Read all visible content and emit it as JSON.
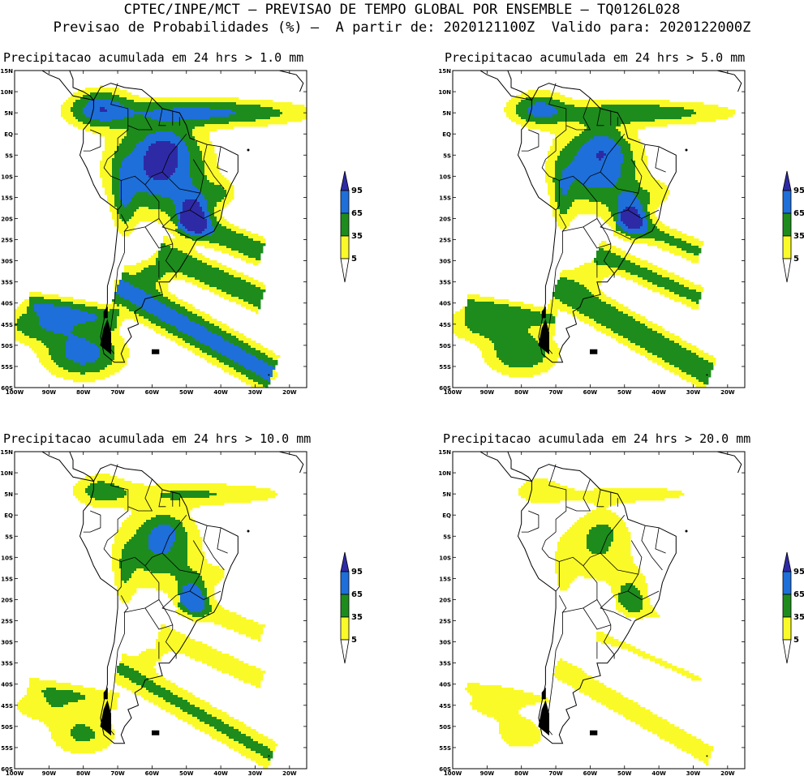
{
  "header": {
    "line1": "CPTEC/INPE/MCT – PREVISAO DE TEMPO GLOBAL POR ENSEMBLE – TQ0126L028",
    "line2": "Previsao de Probabilidades (%) –  A partir de: 2020121100Z  Valido para: 2020122000Z"
  },
  "axes": {
    "lat_labels": [
      "15N",
      "10N",
      "5N",
      "EQ",
      "5S",
      "10S",
      "15S",
      "20S",
      "25S",
      "30S",
      "35S",
      "40S",
      "45S",
      "50S",
      "55S",
      "60S"
    ],
    "lon_labels": [
      "100W",
      "90W",
      "80W",
      "70W",
      "60W",
      "50W",
      "40W",
      "30W",
      "20W"
    ]
  },
  "colorbar": {
    "levels": [
      "95",
      "65",
      "35",
      "5"
    ],
    "colors": [
      "#2e2aa6",
      "#1e6fd9",
      "#1d8c1d",
      "#fafa28"
    ]
  },
  "panels": [
    {
      "title": "Precipitacao acumulada em 24 hrs > 1.0 mm",
      "intensity": 4
    },
    {
      "title": "Precipitacao acumulada em 24 hrs > 5.0 mm",
      "intensity": 3
    },
    {
      "title": "Precipitacao acumulada em 24 hrs > 10.0 mm",
      "intensity": 2
    },
    {
      "title": "Precipitacao acumulada em 24 hrs > 20.0 mm",
      "intensity": 1
    }
  ]
}
